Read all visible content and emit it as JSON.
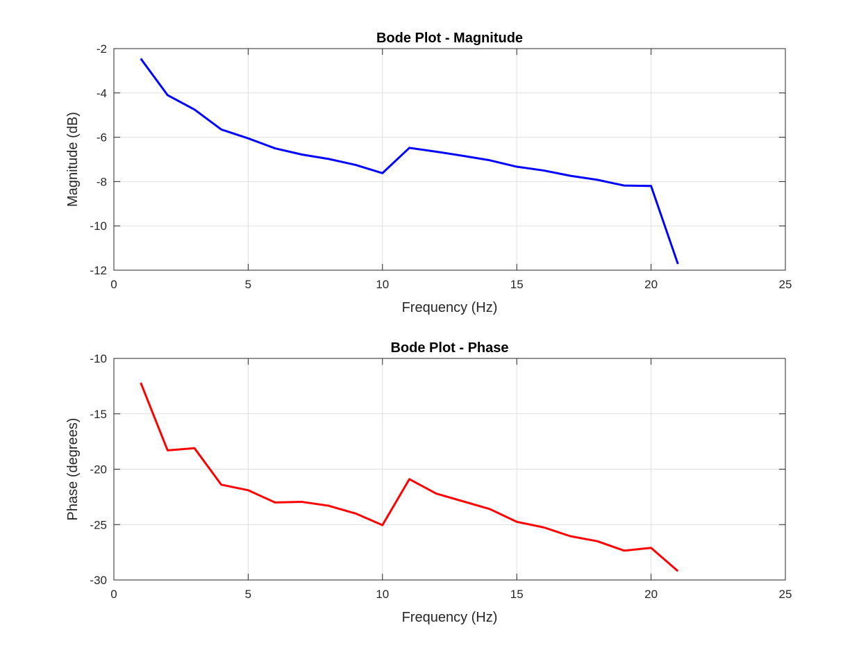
{
  "chart_data": [
    {
      "type": "line",
      "title": "Bode Plot - Magnitude",
      "xlabel": "Frequency (Hz)",
      "ylabel": "Magnitude (dB)",
      "xlim": [
        0,
        25
      ],
      "ylim": [
        -12,
        -2
      ],
      "xticks": [
        0,
        5,
        10,
        15,
        20,
        25
      ],
      "yticks": [
        -12,
        -10,
        -8,
        -6,
        -4,
        -2
      ],
      "grid": true,
      "color": "#0000ff",
      "series": [
        {
          "x": [
            1,
            2,
            3,
            4,
            5,
            6,
            7,
            8,
            9,
            10,
            11,
            12,
            13,
            14,
            15,
            16,
            17,
            18,
            19,
            20,
            21
          ],
          "values": [
            -2.45,
            -4.1,
            -4.75,
            -5.65,
            -6.05,
            -6.5,
            -6.78,
            -6.98,
            -7.25,
            -7.62,
            -6.48,
            -6.65,
            -6.84,
            -7.04,
            -7.33,
            -7.5,
            -7.74,
            -7.92,
            -8.18,
            -8.2,
            -11.72
          ]
        }
      ]
    },
    {
      "type": "line",
      "title": "Bode Plot - Phase",
      "xlabel": "Frequency (Hz)",
      "ylabel": "Phase (degrees)",
      "xlim": [
        0,
        25
      ],
      "ylim": [
        -30,
        -10
      ],
      "xticks": [
        0,
        5,
        10,
        15,
        20,
        25
      ],
      "yticks": [
        -30,
        -25,
        -20,
        -15,
        -10
      ],
      "grid": true,
      "color": "#ff0000",
      "series": [
        {
          "x": [
            1,
            2,
            3,
            4,
            5,
            6,
            7,
            8,
            9,
            10,
            11,
            12,
            13,
            14,
            15,
            16,
            17,
            18,
            19,
            20,
            21
          ],
          "values": [
            -12.2,
            -18.3,
            -18.1,
            -21.4,
            -21.9,
            -23.0,
            -22.95,
            -23.3,
            -24.0,
            -25.05,
            -20.9,
            -22.2,
            -22.9,
            -23.6,
            -24.75,
            -25.25,
            -26.05,
            -26.5,
            -27.35,
            -27.1,
            -29.2
          ]
        }
      ]
    }
  ]
}
